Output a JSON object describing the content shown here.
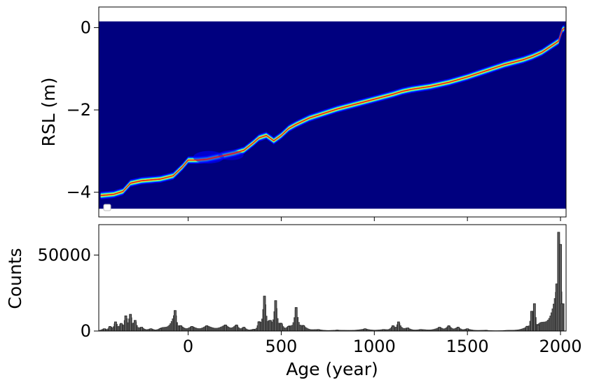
{
  "chart_data": [
    {
      "type": "heatmap",
      "title": "",
      "xlabel": "",
      "ylabel": "RSL (m)",
      "xlim": [
        -480,
        2030
      ],
      "ylim": [
        -4.6,
        0.5
      ],
      "yticks": [
        0,
        -2,
        -4
      ],
      "ytick_labels": [
        "0",
        "−2",
        "−4"
      ],
      "xticks": [
        0,
        500,
        1000,
        1500,
        2000
      ],
      "heatmap_extent": {
        "ymin": -4.4,
        "ymax": 0.15
      },
      "background_color": "#00007f",
      "band_colors": [
        "#0000ff",
        "#00bfff",
        "#7fff7f",
        "#ffff00",
        "#ff0000"
      ],
      "legend": {
        "placement": "lower-left",
        "entries": []
      },
      "series": [
        {
          "x": [
            -470,
            -400,
            -350,
            -310,
            -250,
            -150,
            -80,
            -30,
            0,
            50,
            100,
            150,
            200,
            250,
            300,
            350,
            380,
            420,
            460,
            500,
            540,
            580,
            650,
            800,
            900,
            1000,
            1100,
            1150,
            1200,
            1300,
            1400,
            1500,
            1600,
            1700,
            1800,
            1850,
            1900,
            1950,
            1990,
            2000,
            2010,
            2020
          ],
          "y": [
            -4.08,
            -4.05,
            -3.98,
            -3.78,
            -3.72,
            -3.68,
            -3.6,
            -3.38,
            -3.22,
            -3.22,
            -3.2,
            -3.15,
            -3.1,
            -3.05,
            -2.98,
            -2.8,
            -2.68,
            -2.62,
            -2.75,
            -2.62,
            -2.45,
            -2.35,
            -2.2,
            -1.98,
            -1.86,
            -1.74,
            -1.62,
            -1.55,
            -1.5,
            -1.43,
            -1.33,
            -1.2,
            -1.05,
            -0.9,
            -0.78,
            -0.7,
            -0.6,
            -0.45,
            -0.33,
            -0.18,
            -0.05,
            -0.02
          ]
        }
      ]
    },
    {
      "type": "bar",
      "title": "",
      "xlabel": "Age (year)",
      "ylabel": "Counts",
      "xlim": [
        -480,
        2030
      ],
      "ylim": [
        0,
        70000
      ],
      "yticks": [
        0,
        50000
      ],
      "xticks": [
        0,
        500,
        1000,
        1500,
        2000
      ],
      "bar_color": "#404040",
      "peaks": [
        {
          "x": -450,
          "y": 1500
        },
        {
          "x": -420,
          "y": 3000
        },
        {
          "x": -390,
          "y": 6000
        },
        {
          "x": -360,
          "y": 5000
        },
        {
          "x": -335,
          "y": 10000
        },
        {
          "x": -310,
          "y": 11000
        },
        {
          "x": -285,
          "y": 7000
        },
        {
          "x": -250,
          "y": 2500
        },
        {
          "x": -200,
          "y": 1500
        },
        {
          "x": -150,
          "y": 1500
        },
        {
          "x": -70,
          "y": 13500
        },
        {
          "x": -40,
          "y": 3500
        },
        {
          "x": 20,
          "y": 3000
        },
        {
          "x": 100,
          "y": 3500
        },
        {
          "x": 200,
          "y": 4000
        },
        {
          "x": 260,
          "y": 4000
        },
        {
          "x": 300,
          "y": 2500
        },
        {
          "x": 350,
          "y": 1000
        },
        {
          "x": 380,
          "y": 6000
        },
        {
          "x": 410,
          "y": 23000
        },
        {
          "x": 440,
          "y": 7000
        },
        {
          "x": 470,
          "y": 20000
        },
        {
          "x": 500,
          "y": 5000
        },
        {
          "x": 540,
          "y": 3000
        },
        {
          "x": 580,
          "y": 15500
        },
        {
          "x": 620,
          "y": 3500
        },
        {
          "x": 700,
          "y": 1000
        },
        {
          "x": 800,
          "y": 600
        },
        {
          "x": 950,
          "y": 1500
        },
        {
          "x": 1050,
          "y": 1000
        },
        {
          "x": 1100,
          "y": 3500
        },
        {
          "x": 1130,
          "y": 6000
        },
        {
          "x": 1180,
          "y": 2000
        },
        {
          "x": 1250,
          "y": 1000
        },
        {
          "x": 1350,
          "y": 2500
        },
        {
          "x": 1400,
          "y": 3500
        },
        {
          "x": 1450,
          "y": 2500
        },
        {
          "x": 1500,
          "y": 1500
        },
        {
          "x": 1600,
          "y": 500
        },
        {
          "x": 1700,
          "y": 300
        },
        {
          "x": 1820,
          "y": 3000
        },
        {
          "x": 1845,
          "y": 13000
        },
        {
          "x": 1860,
          "y": 18000
        },
        {
          "x": 1880,
          "y": 4000
        },
        {
          "x": 1980,
          "y": 31000
        },
        {
          "x": 1990,
          "y": 65000
        },
        {
          "x": 2000,
          "y": 57000
        },
        {
          "x": 2008,
          "y": 18000
        }
      ]
    }
  ],
  "ticklabels": {
    "x0": "0",
    "x1": "500",
    "x2": "1000",
    "x3": "1500",
    "x4": "2000",
    "top_y0": "0",
    "top_y1": "−2",
    "top_y2": "−4",
    "bot_y0": "0",
    "bot_y1": "50000"
  },
  "labels": {
    "top_ylabel": "RSL (m)",
    "bottom_ylabel": "Counts",
    "bottom_xlabel": "Age (year)"
  }
}
